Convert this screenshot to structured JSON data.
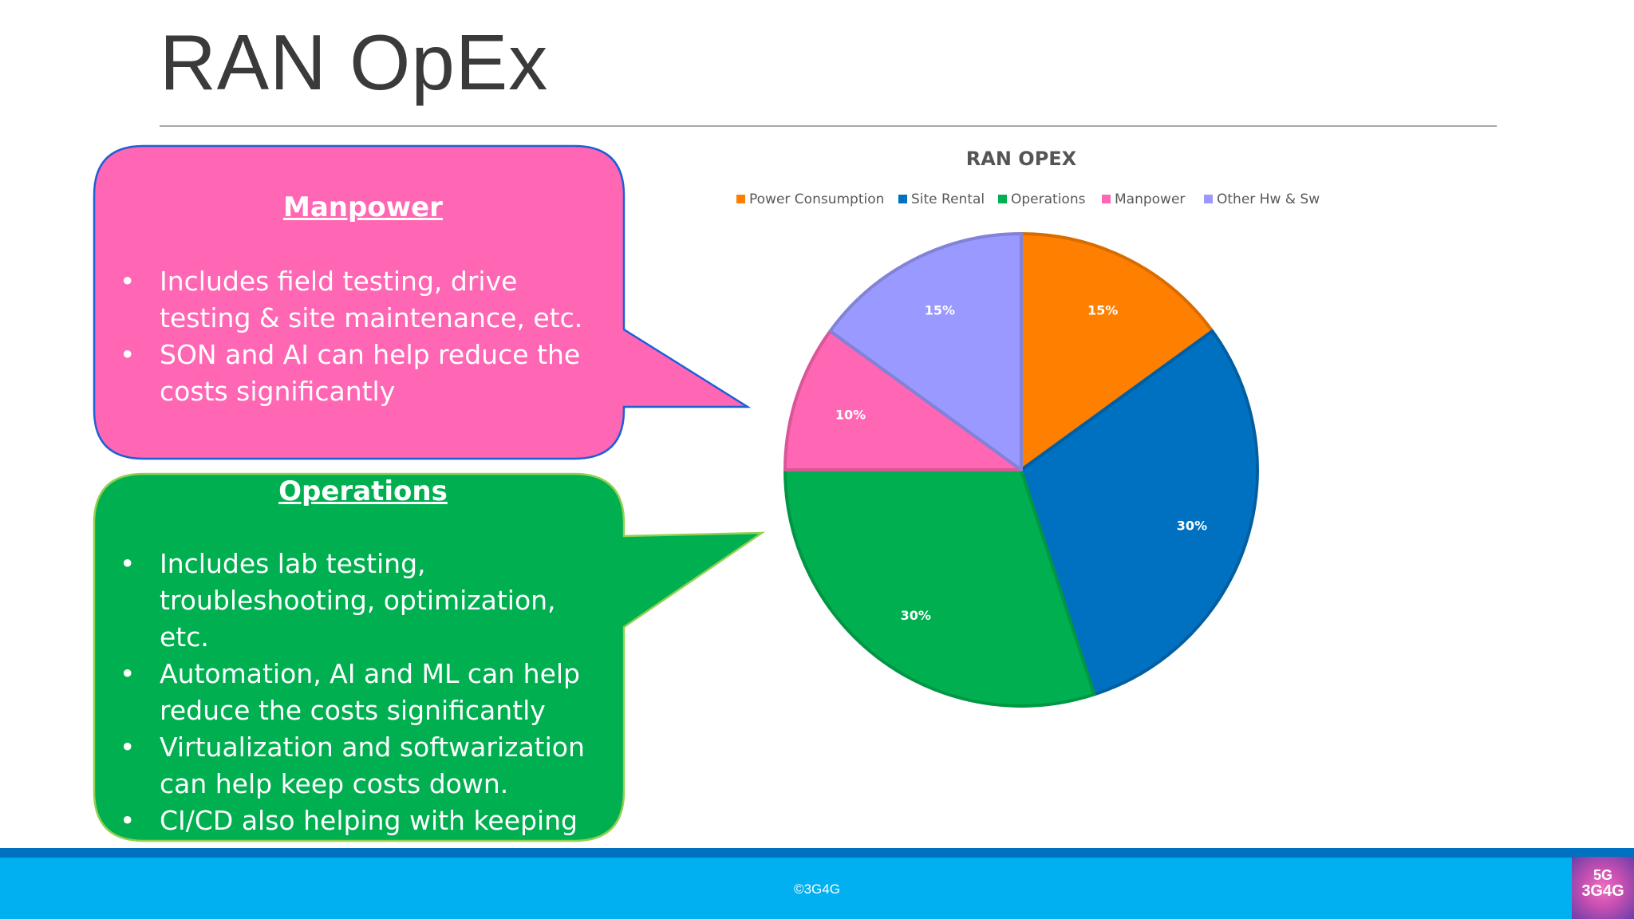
{
  "slide": {
    "title": "RAN OpEx"
  },
  "callouts": {
    "manpower": {
      "heading": "Manpower",
      "bullets": [
        "Includes field testing, drive testing & site maintenance, etc.",
        "SON and AI can help reduce the costs significantly"
      ],
      "fill": "#ff66b3",
      "border": "#1f5fd6"
    },
    "operations": {
      "heading": "Operations",
      "bullets": [
        "Includes lab testing, troubleshooting, optimization, etc.",
        "Automation, AI and ML can help reduce the costs significantly",
        "Virtualization and softwarization can help keep costs down.",
        "CI/CD also helping with keeping costs down."
      ],
      "fill": "#00b050",
      "border": "#92d050"
    }
  },
  "chart_data": {
    "type": "pie",
    "title": "RAN OPEX",
    "legend_position": "top",
    "slices": [
      {
        "label": "Power Consumption",
        "value": 15,
        "display": "15%",
        "color": "#ff7f00"
      },
      {
        "label": "Site Rental",
        "value": 30,
        "display": "30%",
        "color": "#0070c0"
      },
      {
        "label": "Operations",
        "value": 30,
        "display": "30%",
        "color": "#00b050"
      },
      {
        "label": "Manpower",
        "value": 10,
        "display": "10%",
        "color": "#ff66b3"
      },
      {
        "label": "Other Hw & Sw",
        "value": 15,
        "display": "15%",
        "color": "#9999ff"
      }
    ]
  },
  "footer": {
    "copyright": "©3G4G"
  },
  "logo": {
    "line1": "5G",
    "line2": "3G4G"
  }
}
